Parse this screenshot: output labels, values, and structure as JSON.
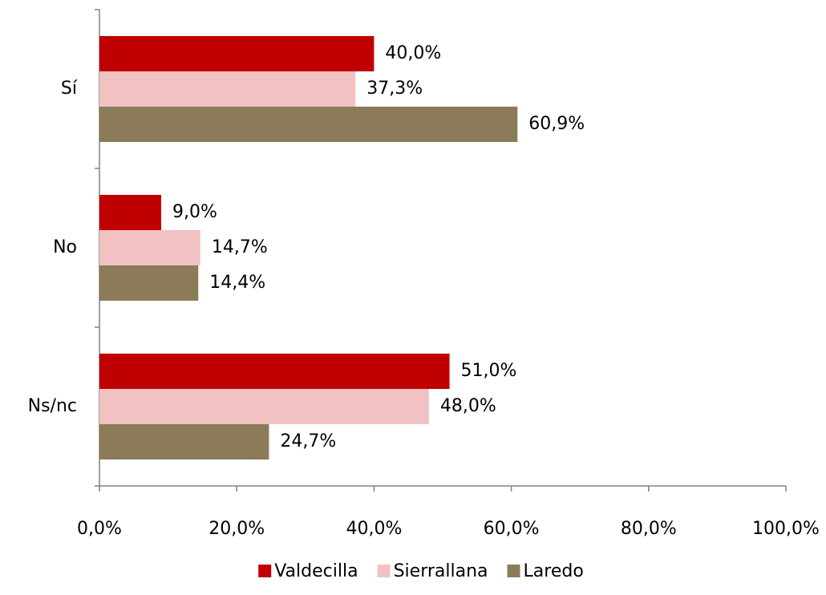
{
  "chart_data": {
    "type": "barh",
    "categories": [
      "Sí",
      "No",
      "Ns/nc"
    ],
    "series": [
      {
        "name": "Valdecilla",
        "color": "#c00000",
        "values": [
          40.0,
          9.0,
          51.0
        ],
        "value_labels": [
          "40,0%",
          "9,0%",
          "51,0%"
        ]
      },
      {
        "name": "Sierrallana",
        "color": "#f2c2c2",
        "values": [
          37.3,
          14.7,
          48.0
        ],
        "value_labels": [
          "37,3%",
          "14,7%",
          "48,0%"
        ]
      },
      {
        "name": "Laredo",
        "color": "#8b7b58",
        "values": [
          60.9,
          14.4,
          24.7
        ],
        "value_labels": [
          "60,9%",
          "14,4%",
          "24,7%"
        ]
      }
    ],
    "xlim": [
      0,
      100
    ],
    "xticks": [
      {
        "value": 0,
        "label": "0,0%"
      },
      {
        "value": 20,
        "label": "20,0%"
      },
      {
        "value": 40,
        "label": "40,0%"
      },
      {
        "value": 60,
        "label": "60,0%"
      },
      {
        "value": 80,
        "label": "80,0%"
      },
      {
        "value": 100,
        "label": "100,0%"
      }
    ],
    "legend": "bottom"
  }
}
